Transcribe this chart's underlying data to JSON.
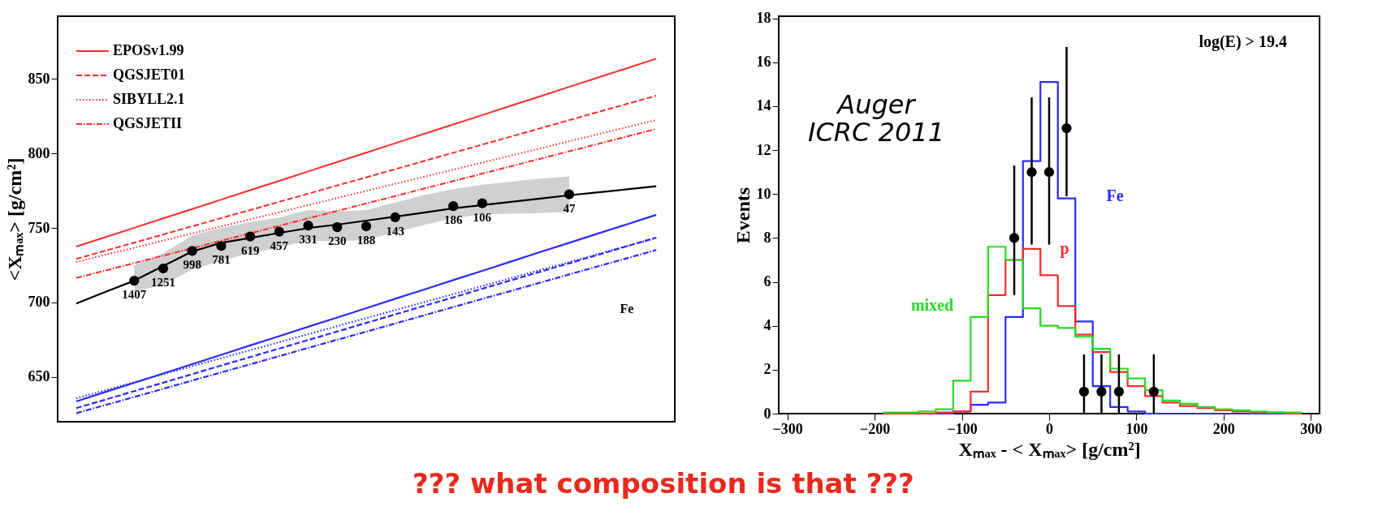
{
  "chart_data": [
    {
      "type": "line",
      "ylabel": "<Xₘₐₓ> [g/cm²]",
      "categories": [
        null,
        null,
        null,
        null,
        null,
        null,
        null,
        null,
        null,
        null,
        null,
        null,
        null,
        null,
        null,
        null,
        null,
        null,
        null,
        null,
        null
      ],
      "ylim": [
        620,
        892
      ],
      "yticks": [
        650,
        700,
        750,
        800,
        850
      ],
      "tick_labels": "y",
      "legend": "top left",
      "series": [
        {
          "type": "line",
          "color": "#000000",
          "line_style": "solid",
          "values": [
            699.3,
            707.0,
            714.6,
            724.4,
            734.2,
            740.0,
            743.3,
            746.6,
            749.9,
            752.2,
            754.9,
            757.6,
            760.3,
            763.1,
            765.3,
            767.5,
            769.7,
            771.9,
            773.9,
            775.9,
            778.0
          ],
          "lower": [
            null,
            null,
            707,
            712,
            722,
            728,
            733,
            737,
            741.5,
            741,
            742,
            747,
            752,
            756.6,
            759,
            759.5,
            760,
            760.7,
            null,
            null,
            null
          ],
          "upper": [
            null,
            null,
            725,
            733,
            745,
            750,
            754,
            757,
            762,
            761,
            762,
            767,
            772,
            776,
            779,
            781,
            783,
            784.6,
            null,
            null,
            null
          ]
        },
        {
          "type": "scatter",
          "color": "#000000",
          "marker": "circle",
          "values": [
            null,
            null,
            714.6,
            722.8,
            734.6,
            737.9,
            744.2,
            747.5,
            751.6,
            750.5,
            751.1,
            757.1,
            null,
            764.6,
            766.5,
            null,
            null,
            772.5,
            null,
            null,
            null
          ]
        },
        {
          "name": "EPOSv1.99",
          "color": "#ff2a2a",
          "line_style": "solid",
          "values": [
            737.5,
            743.8,
            750.1,
            756.4,
            762.7,
            769.0,
            775.3,
            781.6,
            787.9,
            794.2,
            800.5,
            806.8,
            813.1,
            819.4,
            825.7,
            832.0,
            838.3,
            844.6,
            850.9,
            857.2,
            863.5
          ]
        },
        {
          "name": "QGSJET01",
          "color": "#ff2a2a",
          "line_style": "dashed",
          "values": [
            729.2,
            734.7,
            740.1,
            745.6,
            751.1,
            756.6,
            762.0,
            767.5,
            773.0,
            778.5,
            783.9,
            789.4,
            794.9,
            800.4,
            805.9,
            811.3,
            816.8,
            822.3,
            827.8,
            833.2,
            838.7
          ]
        },
        {
          "name": "SIBYLL2.1",
          "color": "#ff2a2a",
          "line_style": "dotted",
          "values": [
            727.2,
            732.0,
            736.7,
            741.5,
            746.3,
            751.0,
            755.8,
            760.5,
            765.3,
            770.1,
            774.8,
            779.6,
            784.3,
            789.1,
            793.8,
            798.6,
            803.3,
            808.1,
            812.9,
            817.6,
            822.4
          ]
        },
        {
          "name": "QGSJETII",
          "color": "#ff2a2a",
          "line_style": "dashdot",
          "values": [
            716.4,
            721.4,
            726.4,
            731.4,
            736.4,
            741.4,
            746.4,
            751.4,
            756.4,
            761.4,
            766.4,
            771.4,
            776.4,
            781.4,
            786.4,
            791.4,
            796.4,
            801.4,
            806.4,
            811.4,
            816.4
          ]
        },
        {
          "color": "#2a2aff",
          "line_style": "solid",
          "values": [
            633.6,
            639.9,
            646.1,
            652.4,
            658.6,
            664.9,
            671.2,
            677.4,
            683.7,
            689.9,
            696.2,
            702.5,
            708.7,
            715.0,
            721.2,
            727.5,
            733.8,
            740.0,
            746.3,
            752.5,
            758.8
          ]
        },
        {
          "color": "#2a2aff",
          "line_style": "dashed",
          "values": [
            629.1,
            634.8,
            640.5,
            646.2,
            651.9,
            657.7,
            663.4,
            669.1,
            674.8,
            680.5,
            686.3,
            692.0,
            697.7,
            703.4,
            709.2,
            714.9,
            720.6,
            726.3,
            732.0,
            737.8,
            743.5
          ]
        },
        {
          "color": "#2a2aff",
          "line_style": "dotted",
          "values": [
            635.7,
            641.1,
            646.5,
            651.8,
            657.2,
            662.6,
            668.0,
            673.4,
            678.7,
            684.1,
            689.5,
            694.9,
            700.2,
            705.6,
            711.0,
            716.4,
            721.8,
            727.1,
            732.5,
            737.9,
            743.3
          ]
        },
        {
          "color": "#2a2aff",
          "line_style": "dashdot",
          "values": [
            625.7,
            631.2,
            636.6,
            642.1,
            647.6,
            653.1,
            658.5,
            664.0,
            669.5,
            675.0,
            680.4,
            685.9,
            691.4,
            696.9,
            702.4,
            707.8,
            713.3,
            718.8,
            724.3,
            729.7,
            735.2
          ]
        }
      ],
      "annotations": [
        "Fe",
        "1407",
        "1251",
        "998",
        "781",
        "619",
        "457",
        "331",
        "230",
        "188",
        "143",
        "186",
        "106",
        "47"
      ]
    },
    {
      "type": "histogram",
      "xlabel": "Xₘₐₓ - < Xₘₐₓ> [g/cm²]",
      "ylabel": "Events",
      "xlim": [
        -310,
        310
      ],
      "xticks": [
        -300,
        -200,
        -100,
        0,
        100,
        200,
        300
      ],
      "ylim": [
        0,
        18.1
      ],
      "yticks": [
        0,
        2,
        4,
        6,
        8,
        10,
        12,
        14,
        16,
        18
      ],
      "bins": [
        -190,
        -170,
        -150,
        -130,
        -110,
        -90,
        -70,
        -50,
        -30,
        -10,
        10,
        30,
        50,
        70,
        90,
        110,
        130,
        150,
        170,
        190,
        210,
        230,
        250,
        270,
        290
      ],
      "series": [
        {
          "name": "Fe",
          "color": "#2a2aff",
          "values": [
            0,
            0,
            0,
            0,
            0.1,
            0.4,
            0.5,
            4.4,
            11.5,
            15.1,
            9.8,
            4.2,
            1.25,
            0.3,
            0.1,
            0,
            0,
            0,
            0,
            0,
            0,
            0,
            0,
            0
          ]
        },
        {
          "name": "p",
          "color": "#ff2a2a",
          "values": [
            0,
            0,
            0,
            0.05,
            0.1,
            1.0,
            5.4,
            7.0,
            7.5,
            6.3,
            4.9,
            3.6,
            2.8,
            1.9,
            1.25,
            0.8,
            0.5,
            0.35,
            0.25,
            0.15,
            0.1,
            0.05,
            0.05,
            0
          ]
        },
        {
          "name": "mixed",
          "color": "#22dd22",
          "values": [
            0.05,
            0.05,
            0.1,
            0.2,
            1.5,
            4.4,
            7.6,
            7.0,
            4.8,
            4.0,
            3.9,
            3.5,
            2.95,
            2.05,
            1.6,
            1.07,
            0.6,
            0.45,
            0.3,
            0.2,
            0.15,
            0.1,
            0.05,
            0.05
          ]
        },
        {
          "type": "scatter",
          "color": "#000000",
          "marker": "circle",
          "x": [
            -40,
            -20,
            0,
            20,
            40,
            60,
            80,
            120
          ],
          "values": [
            8,
            11,
            11,
            13,
            1,
            1,
            1,
            1
          ],
          "errors": [
            [
              5.4,
              11.3
            ],
            [
              7.7,
              14.4
            ],
            [
              7.7,
              14.4
            ],
            [
              9.9,
              16.7
            ],
            [
              0,
              2.7
            ],
            [
              0,
              2.7
            ],
            [
              0,
              2.7
            ],
            [
              0,
              2.7
            ]
          ]
        }
      ],
      "annotations": [
        "log(E) > 19.4",
        "Auger\nICRC 2011",
        "??? what composition is that ???"
      ]
    }
  ]
}
